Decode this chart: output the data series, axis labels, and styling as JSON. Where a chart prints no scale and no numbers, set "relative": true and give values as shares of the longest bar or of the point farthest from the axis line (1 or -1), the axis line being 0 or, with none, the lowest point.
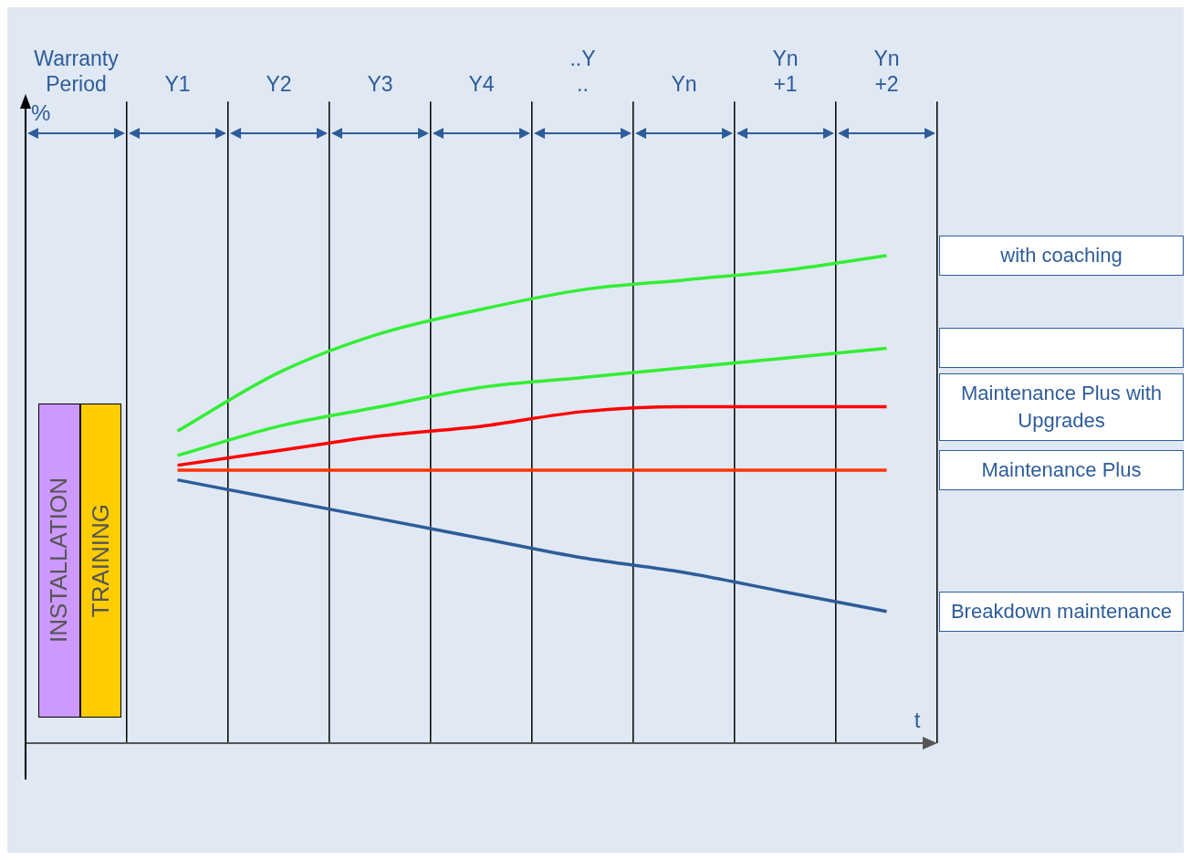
{
  "chart_data": {
    "type": "line",
    "relative": true,
    "xlabel": "t",
    "ylabel": "%",
    "grid": "x",
    "legend": "right",
    "marker": "none",
    "annotations": [
      "INSTALLATION",
      "TRAINING"
    ],
    "categories": [
      "Warranty Period",
      "Y1",
      "Y2",
      "Y3",
      "Y4",
      "..Y ..",
      "Yn",
      "Yn +1",
      "Yn +2"
    ],
    "series": [
      {
        "name": "with coaching",
        "color": "#33ee33",
        "values": [
          null,
          0.64,
          0.76,
          0.84,
          0.89,
          0.93,
          0.95,
          0.97,
          1
        ]
      },
      {
        "color": "#33ee33",
        "values": [
          null,
          0.59,
          0.65,
          0.69,
          0.73,
          0.75,
          0.77,
          0.79,
          0.81
        ]
      },
      {
        "name": "Maintenance Plus with Upgrades",
        "color": "#ff0000",
        "values": [
          null,
          0.57,
          0.6,
          0.63,
          0.65,
          0.68,
          0.69,
          0.69,
          0.69
        ]
      },
      {
        "name": "Maintenance Plus",
        "color": "#ff3300",
        "values": [
          null,
          0.56,
          0.56,
          0.56,
          0.56,
          0.56,
          0.56,
          0.56,
          0.56
        ]
      },
      {
        "name": "Breakdown maintenance",
        "color": "#2e5c99",
        "values": [
          null,
          0.54,
          0.5,
          0.46,
          0.42,
          0.38,
          0.35,
          0.31,
          0.27
        ]
      }
    ]
  }
}
